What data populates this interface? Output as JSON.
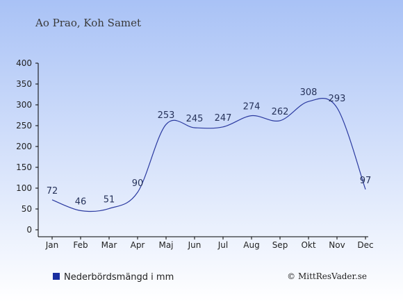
{
  "header": {
    "title": "Ao Prao, Koh Samet"
  },
  "legend": {
    "label": "Nederbördsmängd i mm",
    "color": "#1a2fa0"
  },
  "footer": {
    "credit": "© MittResVader.se"
  },
  "colors": {
    "background_top": "#a9c2f6",
    "background_bottom": "#ffffff",
    "line": "#2b3aa0",
    "axis": "#000000"
  },
  "chart_data": {
    "type": "line",
    "title": "Ao Prao, Koh Samet",
    "xlabel": "",
    "ylabel": "",
    "categories": [
      "Jan",
      "Feb",
      "Mar",
      "Apr",
      "Maj",
      "Jun",
      "Jul",
      "Aug",
      "Sep",
      "Okt",
      "Nov",
      "Dec"
    ],
    "series": [
      {
        "name": "Nederbördsmängd i mm",
        "values": [
          72,
          46,
          51,
          90,
          253,
          245,
          247,
          274,
          262,
          308,
          293,
          97
        ],
        "labels": [
          "72",
          "46",
          "51",
          "90",
          "253",
          "245",
          "247",
          "274",
          "262",
          "308",
          "293",
          "97"
        ]
      }
    ],
    "ylim": [
      0,
      400
    ],
    "yticks": [
      0,
      50,
      100,
      150,
      200,
      250,
      300,
      350,
      400
    ],
    "ytick_labels": [
      "0",
      "50",
      "100",
      "150",
      "200",
      "250",
      "300",
      "350",
      "400"
    ],
    "grid": false,
    "legend_position": "bottom-left"
  }
}
